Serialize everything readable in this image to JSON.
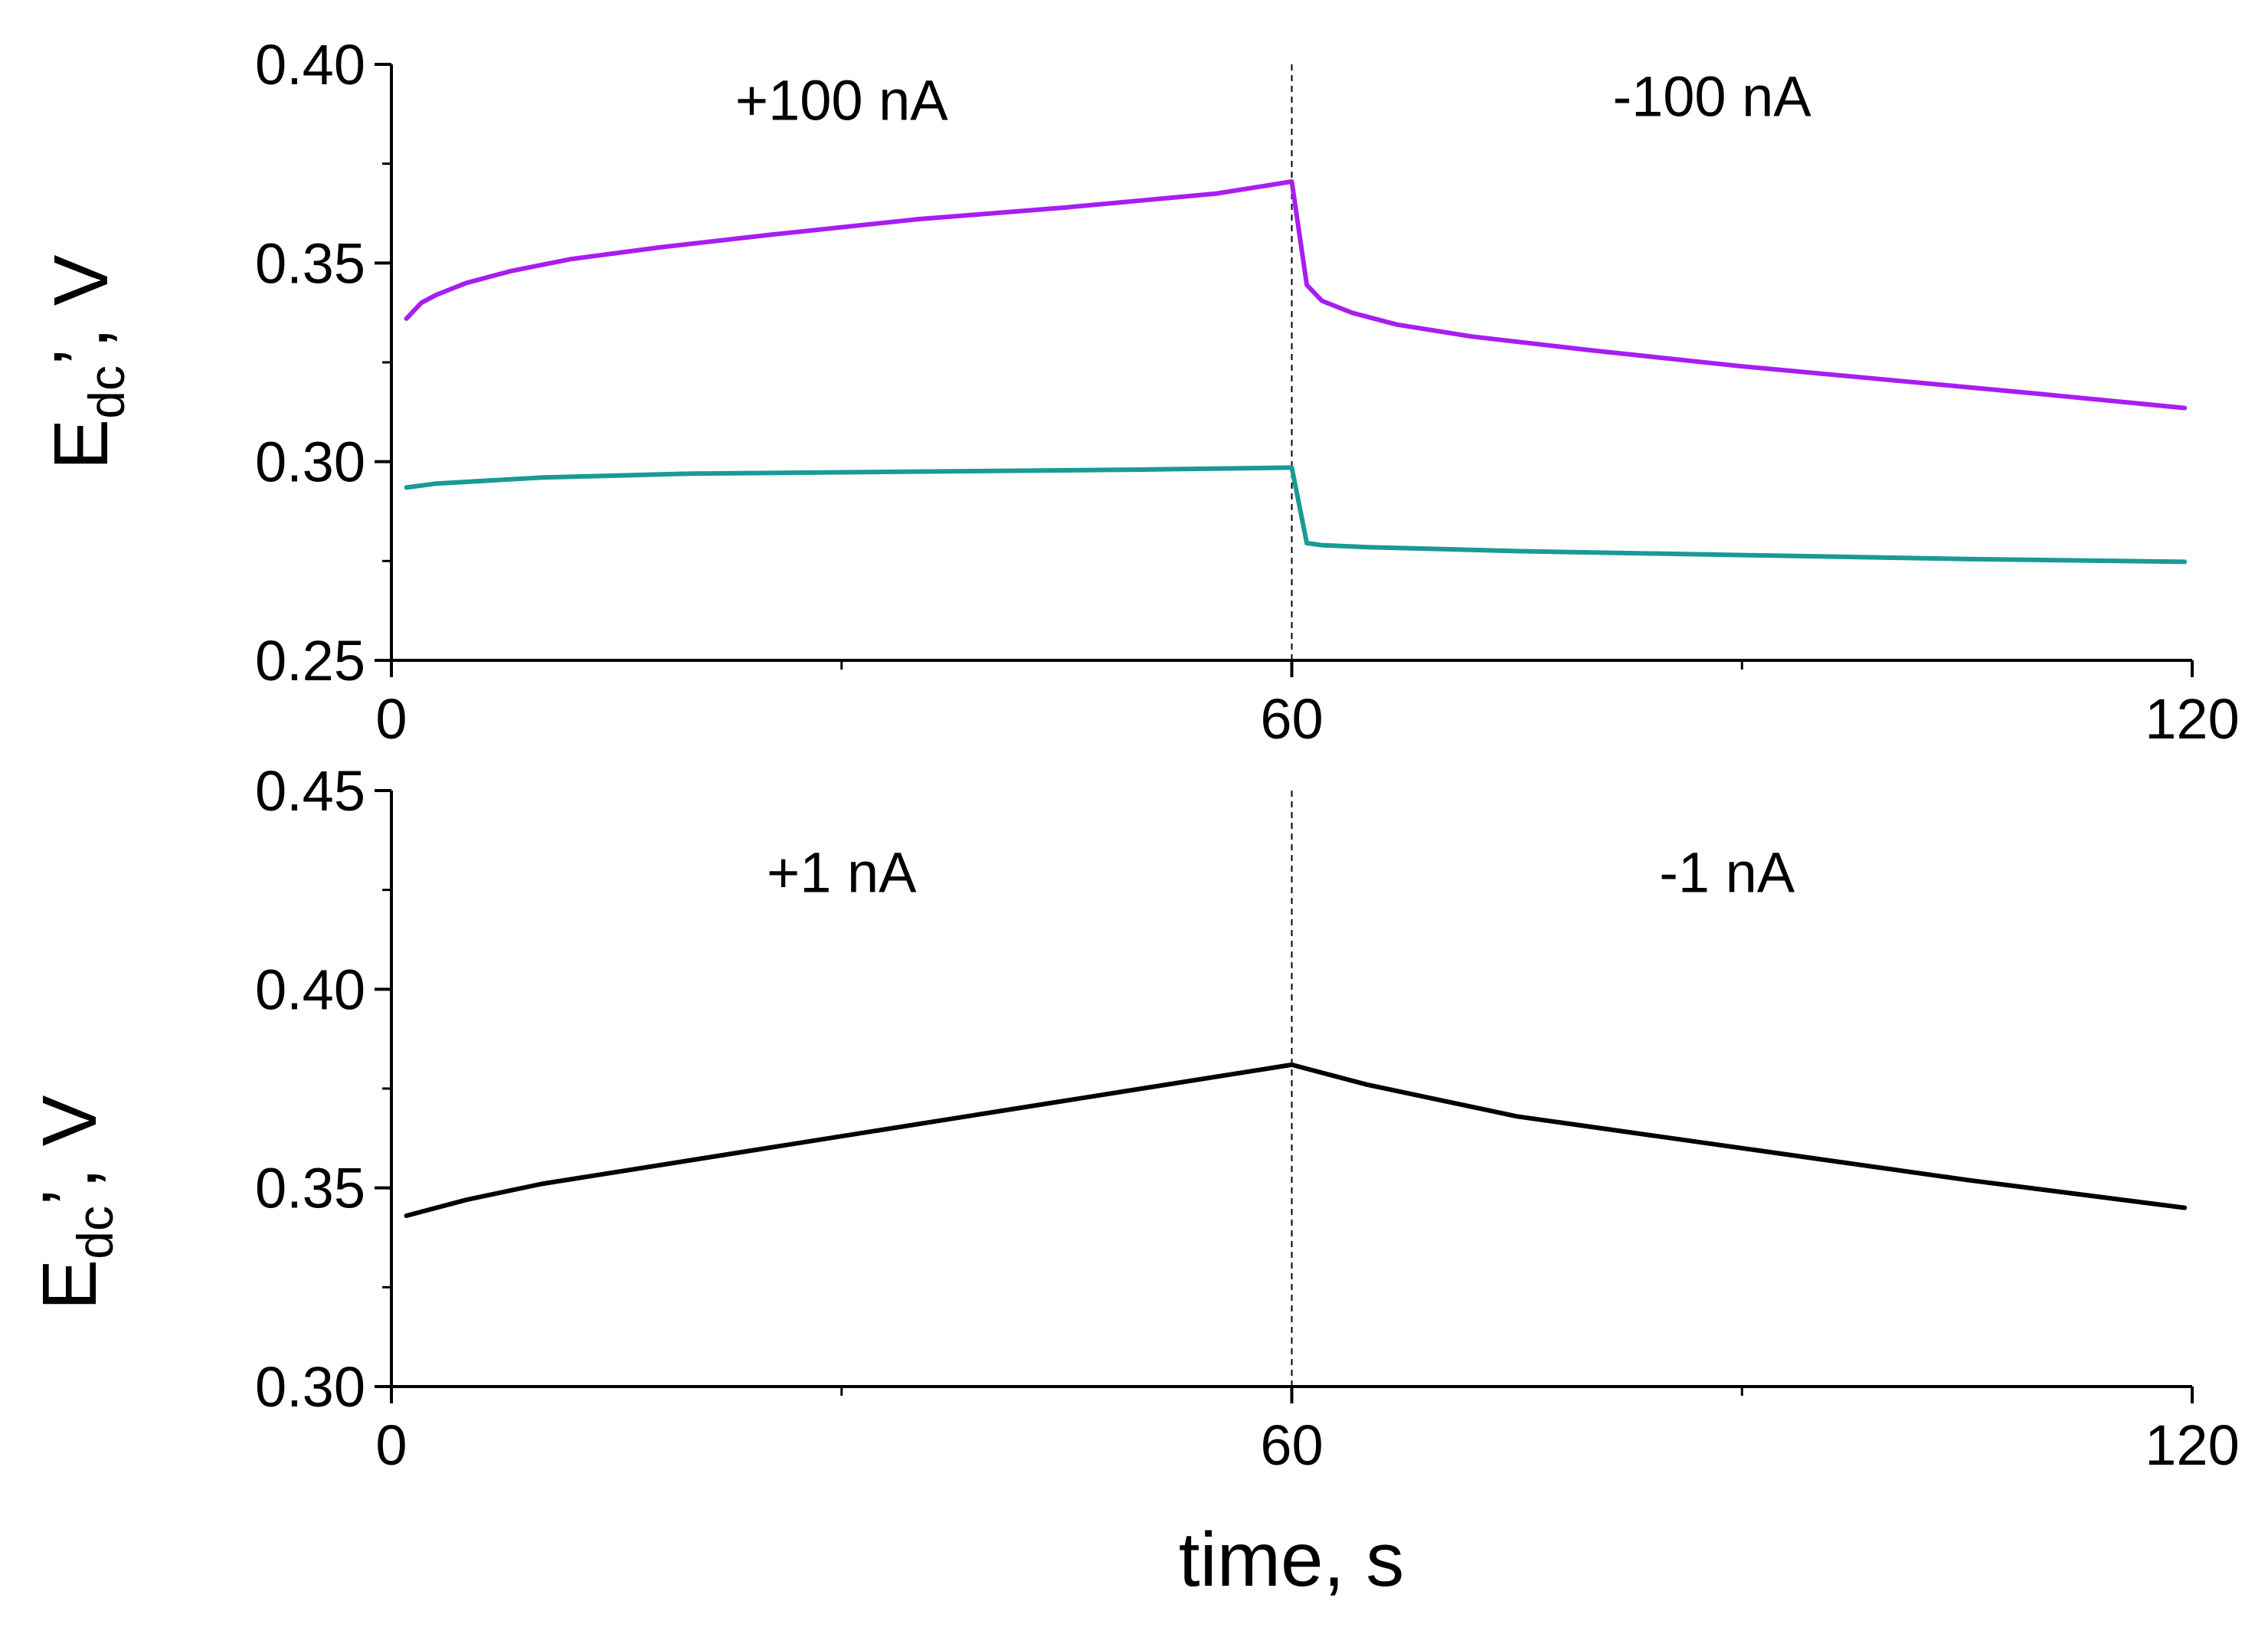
{
  "chart_data": [
    {
      "type": "line",
      "id": "top",
      "ylabel_main": "E",
      "ylabel_sub": "dc",
      "ylabel_tail": "’, V",
      "xlim": [
        0,
        120
      ],
      "ylim": [
        0.25,
        0.4
      ],
      "x_ticks": [
        0,
        60,
        120
      ],
      "x_tick_labels": [
        "0",
        "60",
        "120"
      ],
      "y_ticks": [
        0.25,
        0.3,
        0.35,
        0.4
      ],
      "y_tick_labels": [
        "0.25",
        "0.30",
        "0.35",
        "0.40"
      ],
      "divider_x": 60,
      "annotations": [
        {
          "text": "+100 nA",
          "x": 30,
          "y": 0.386
        },
        {
          "text": "-100 nA",
          "x": 88,
          "y": 0.387
        }
      ],
      "series": [
        {
          "name": "purple",
          "color": "#a61ef0",
          "x": [
            1,
            2,
            3,
            5,
            8,
            12,
            18,
            25,
            35,
            45,
            55,
            60,
            61,
            62,
            64,
            67,
            72,
            80,
            90,
            100,
            110,
            119.5
          ],
          "y": [
            0.336,
            0.34,
            0.342,
            0.345,
            0.348,
            0.351,
            0.354,
            0.357,
            0.361,
            0.364,
            0.3675,
            0.3705,
            0.3445,
            0.3405,
            0.3375,
            0.3345,
            0.3315,
            0.328,
            0.324,
            0.3205,
            0.317,
            0.3135
          ]
        },
        {
          "name": "teal",
          "color": "#1a9a96",
          "x": [
            1,
            3,
            10,
            20,
            35,
            50,
            60,
            61,
            62,
            65,
            75,
            90,
            105,
            119.5
          ],
          "y": [
            0.2935,
            0.2945,
            0.296,
            0.297,
            0.2975,
            0.298,
            0.2985,
            0.2795,
            0.279,
            0.2785,
            0.2775,
            0.2765,
            0.2755,
            0.2748
          ]
        }
      ]
    },
    {
      "type": "line",
      "id": "bottom",
      "ylabel_main": "E",
      "ylabel_sub": "dc",
      "ylabel_tail": "’, V",
      "xlabel": "time, s",
      "xlim": [
        0,
        120
      ],
      "ylim": [
        0.3,
        0.45
      ],
      "x_ticks": [
        0,
        60,
        120
      ],
      "x_tick_labels": [
        "0",
        "60",
        "120"
      ],
      "y_ticks": [
        0.3,
        0.35,
        0.4,
        0.45
      ],
      "y_tick_labels": [
        "0.30",
        "0.35",
        "0.40",
        "0.45"
      ],
      "divider_x": 60,
      "annotations": [
        {
          "text": "+1 nA",
          "x": 30,
          "y": 0.4245
        },
        {
          "text": "-1 nA",
          "x": 89,
          "y": 0.4245
        }
      ],
      "series": [
        {
          "name": "black",
          "color": "#000000",
          "x": [
            1,
            5,
            10,
            20,
            30,
            40,
            50,
            60,
            61,
            65,
            75,
            90,
            105,
            119.5
          ],
          "y": [
            0.343,
            0.347,
            0.351,
            0.357,
            0.363,
            0.369,
            0.375,
            0.381,
            0.38,
            0.376,
            0.368,
            0.36,
            0.352,
            0.345
          ]
        }
      ]
    }
  ]
}
